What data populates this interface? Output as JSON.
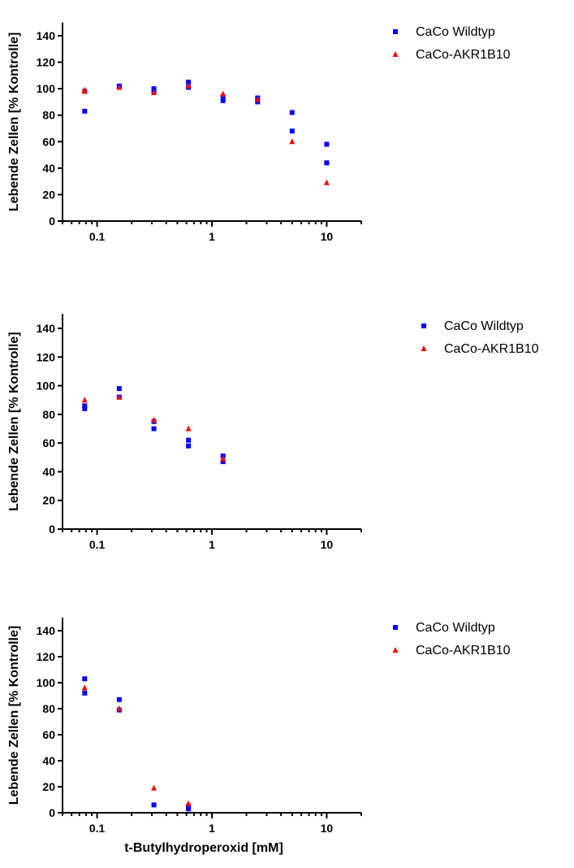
{
  "chart_data": [
    {
      "type": "scatter",
      "title": "",
      "xlabel": "",
      "ylabel": "Lebende Zellen [% Kontrolle]",
      "xscale": "log",
      "xlim": [
        0.05,
        20
      ],
      "ylim": [
        0,
        150
      ],
      "xticks": [
        "0.1",
        "1",
        "10"
      ],
      "yticks": [
        "0",
        "20",
        "40",
        "60",
        "80",
        "100",
        "120",
        "140"
      ],
      "legend": "top-right",
      "series": [
        {
          "name": "CaCo Wildtyp",
          "color": "#0000ff",
          "marker": "square",
          "points": [
            [
              0.078,
              83
            ],
            [
              0.078,
              98
            ],
            [
              0.156,
              102
            ],
            [
              0.156,
              101
            ],
            [
              0.3125,
              98
            ],
            [
              0.3125,
              100
            ],
            [
              0.625,
              105
            ],
            [
              0.625,
              101
            ],
            [
              1.25,
              91
            ],
            [
              1.25,
              94
            ],
            [
              2.5,
              90
            ],
            [
              2.5,
              93
            ],
            [
              5,
              82
            ],
            [
              5,
              68
            ],
            [
              10,
              58
            ],
            [
              10,
              44
            ]
          ]
        },
        {
          "name": "CaCo-AKR1B10",
          "color": "#ff0000",
          "marker": "triangle",
          "points": [
            [
              0.078,
              98
            ],
            [
              0.078,
              99
            ],
            [
              0.156,
              101
            ],
            [
              0.3125,
              97
            ],
            [
              0.625,
              102
            ],
            [
              1.25,
              96
            ],
            [
              2.5,
              92
            ],
            [
              5,
              60
            ],
            [
              10,
              29
            ]
          ]
        }
      ]
    },
    {
      "type": "scatter",
      "title": "",
      "xlabel": "",
      "ylabel": "Lebende Zellen [% Kontrolle]",
      "xscale": "log",
      "xlim": [
        0.05,
        20
      ],
      "ylim": [
        0,
        150
      ],
      "xticks": [
        "0.1",
        "1",
        "10"
      ],
      "yticks": [
        "0",
        "20",
        "40",
        "60",
        "80",
        "100",
        "120",
        "140"
      ],
      "legend": "top-right",
      "series": [
        {
          "name": "CaCo Wildtyp",
          "color": "#0000ff",
          "marker": "square",
          "points": [
            [
              0.078,
              84
            ],
            [
              0.078,
              86
            ],
            [
              0.156,
              98
            ],
            [
              0.156,
              92
            ],
            [
              0.3125,
              70
            ],
            [
              0.3125,
              75
            ],
            [
              0.625,
              62
            ],
            [
              0.625,
              58
            ],
            [
              1.25,
              51
            ],
            [
              1.25,
              47
            ]
          ]
        },
        {
          "name": "CaCo-AKR1B10",
          "color": "#ff0000",
          "marker": "triangle",
          "points": [
            [
              0.078,
              90
            ],
            [
              0.156,
              92
            ],
            [
              0.3125,
              76
            ],
            [
              0.625,
              70
            ],
            [
              1.25,
              49
            ]
          ]
        }
      ]
    },
    {
      "type": "scatter",
      "title": "",
      "xlabel": "t-Butylhydroperoxid [mM]",
      "ylabel": "Lebende Zellen [% Kontrolle]",
      "xscale": "log",
      "xlim": [
        0.05,
        20
      ],
      "ylim": [
        0,
        150
      ],
      "xticks": [
        "0.1",
        "1",
        "10"
      ],
      "yticks": [
        "0",
        "20",
        "40",
        "60",
        "80",
        "100",
        "120",
        "140"
      ],
      "legend": "top-right",
      "series": [
        {
          "name": "CaCo Wildtyp",
          "color": "#0000ff",
          "marker": "square",
          "points": [
            [
              0.078,
              103
            ],
            [
              0.078,
              92
            ],
            [
              0.156,
              87
            ],
            [
              0.156,
              79
            ],
            [
              0.3125,
              6
            ],
            [
              0.625,
              5
            ],
            [
              0.625,
              3
            ]
          ]
        },
        {
          "name": "CaCo-AKR1B10",
          "color": "#ff0000",
          "marker": "triangle",
          "points": [
            [
              0.078,
              96
            ],
            [
              0.156,
              80
            ],
            [
              0.3125,
              19
            ],
            [
              0.625,
              7
            ]
          ]
        }
      ]
    }
  ]
}
